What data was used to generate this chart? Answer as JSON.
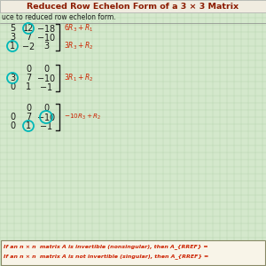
{
  "title": "Reduced Row Echelon Form of a 3 × 3 Matrix",
  "subtitle": "uce to reduced row echelon form.",
  "bg_color": "#d4e8cc",
  "grid_color": "#b8d4b0",
  "title_bg": "#f0ece0",
  "title_color": "#8b1a00",
  "text_color": "#1a1a1a",
  "red_color": "#cc2200",
  "cyan_color": "#00b8b8",
  "footer_bg": "#f8f4e8",
  "footer_border": "#888866",
  "mat1": {
    "row1": [
      "5",
      "12",
      "-18"
    ],
    "row2": [
      "3",
      "7",
      "-10"
    ],
    "row3": [
      "1",
      "-2",
      "3"
    ],
    "circle1": [
      1,
      0
    ],
    "circle2": [
      2,
      0
    ],
    "op1": "6R_{3}+R_{1}",
    "op2": "3R_{3}+R_{2}"
  },
  "mat2": {
    "row1": [
      "",
      "0",
      "0"
    ],
    "row2": [
      "3",
      "7",
      "-10"
    ],
    "row3": [
      "0",
      "1",
      "-1"
    ],
    "circle_r2c1": true,
    "op2": "3R_{1}+R_{2}"
  },
  "mat3": {
    "row1": [
      "",
      "0",
      "0"
    ],
    "row2": [
      "0",
      "7",
      "-10"
    ],
    "row3": [
      "0",
      "1",
      "-1"
    ],
    "circle_r2c3": true,
    "circle_r3c2": true,
    "op2": "-10R_{3}+R_{2}"
  },
  "footer1": "If an n × n  matrix A is invertible (nonsingular), then A_{RREF} =",
  "footer2": "If an n × n  matrix A is not invertible (singular), then A_{RREF} ="
}
